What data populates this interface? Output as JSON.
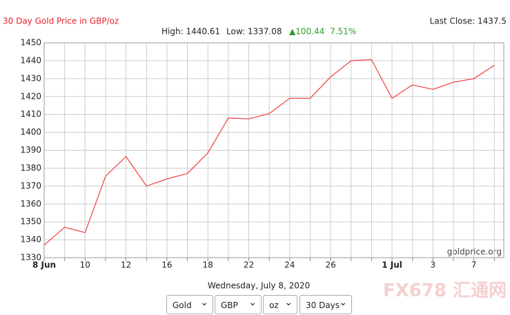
{
  "chart_data": {
    "type": "line",
    "title": "30 Day Gold Price in GBP/oz",
    "last_close": "Last Close: 1437.5",
    "stats": {
      "high": "High: 1440.61",
      "low": "Low: 1337.08",
      "change": "▲100.44",
      "change_pct": "7.51%"
    },
    "watermark": "goldprice.org",
    "categories": [
      "8 Jun",
      null,
      "10",
      null,
      "12",
      null,
      "16",
      null,
      "18",
      null,
      "22",
      null,
      "24",
      null,
      "26",
      null,
      null,
      "1 Jul",
      null,
      "3",
      null,
      "7",
      null
    ],
    "series": [
      {
        "name": "Gold",
        "color": "#f04a4a",
        "values": [
          1337,
          1347,
          1344,
          1375.5,
          1386.5,
          1370,
          1374,
          1377,
          1388.5,
          1408,
          1407.5,
          1410.5,
          1419,
          1419,
          1431,
          1440,
          1440.6,
          1419,
          1426.5,
          1424,
          1428,
          1430,
          1437.5
        ]
      }
    ],
    "ylim": [
      1330,
      1450
    ],
    "yticks": [
      1330,
      1340,
      1350,
      1360,
      1370,
      1380,
      1390,
      1400,
      1410,
      1420,
      1430,
      1440,
      1450
    ],
    "grid": true
  },
  "footer": {
    "date": "Wednesday, July 8, 2020",
    "selects": [
      "Gold",
      "GBP",
      "oz",
      "30 Days"
    ],
    "brand": "FX678 汇通网"
  }
}
